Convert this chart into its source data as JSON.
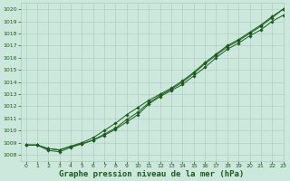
{
  "bg_color": "#cce8dc",
  "grid_color": "#aacaba",
  "line_color": "#1a5c1a",
  "marker_color": "#1a5c1a",
  "xlabel": "Graphe pression niveau de la mer (hPa)",
  "xlabel_fontsize": 6.5,
  "xlim": [
    -0.5,
    23
  ],
  "ylim": [
    1007.5,
    1020.5
  ],
  "yticks": [
    1008,
    1009,
    1010,
    1011,
    1012,
    1013,
    1014,
    1015,
    1016,
    1017,
    1018,
    1019,
    1020
  ],
  "xticks": [
    0,
    1,
    2,
    3,
    4,
    5,
    6,
    7,
    8,
    9,
    10,
    11,
    12,
    13,
    14,
    15,
    16,
    17,
    18,
    19,
    20,
    21,
    22,
    23
  ],
  "line1_x": [
    0,
    1,
    2,
    3,
    4,
    5,
    6,
    7,
    8,
    9,
    10,
    11,
    12,
    13,
    14,
    15,
    16,
    17,
    18,
    19,
    20,
    21,
    22,
    23
  ],
  "line1_y": [
    1008.8,
    1008.8,
    1008.5,
    1008.4,
    1008.7,
    1008.9,
    1009.2,
    1009.6,
    1010.1,
    1010.7,
    1011.3,
    1012.2,
    1012.8,
    1013.3,
    1013.8,
    1014.5,
    1015.2,
    1016.0,
    1016.7,
    1017.2,
    1017.8,
    1018.3,
    1019.0,
    1019.5
  ],
  "line2_x": [
    0,
    1,
    2,
    3,
    4,
    5,
    6,
    7,
    8,
    9,
    10,
    11,
    12,
    13,
    14,
    15,
    16,
    17,
    18,
    19,
    20,
    21,
    22,
    23
  ],
  "line2_y": [
    1008.8,
    1008.8,
    1008.35,
    1008.25,
    1008.6,
    1008.9,
    1009.2,
    1009.7,
    1010.2,
    1010.9,
    1011.5,
    1012.3,
    1012.9,
    1013.4,
    1014.0,
    1014.7,
    1015.5,
    1016.2,
    1016.9,
    1017.4,
    1018.0,
    1018.6,
    1019.3,
    1020.0
  ],
  "line3_x": [
    0,
    1,
    2,
    3,
    4,
    5,
    6,
    7,
    8,
    9,
    10,
    11,
    12,
    13,
    14,
    15,
    16,
    17,
    18,
    19,
    20,
    21,
    22,
    23
  ],
  "line3_y": [
    1008.8,
    1008.8,
    1008.5,
    1008.4,
    1008.7,
    1009.0,
    1009.4,
    1010.0,
    1010.6,
    1011.3,
    1011.9,
    1012.5,
    1013.0,
    1013.5,
    1014.1,
    1014.8,
    1015.6,
    1016.3,
    1017.0,
    1017.5,
    1018.1,
    1018.7,
    1019.4,
    1020.0
  ]
}
